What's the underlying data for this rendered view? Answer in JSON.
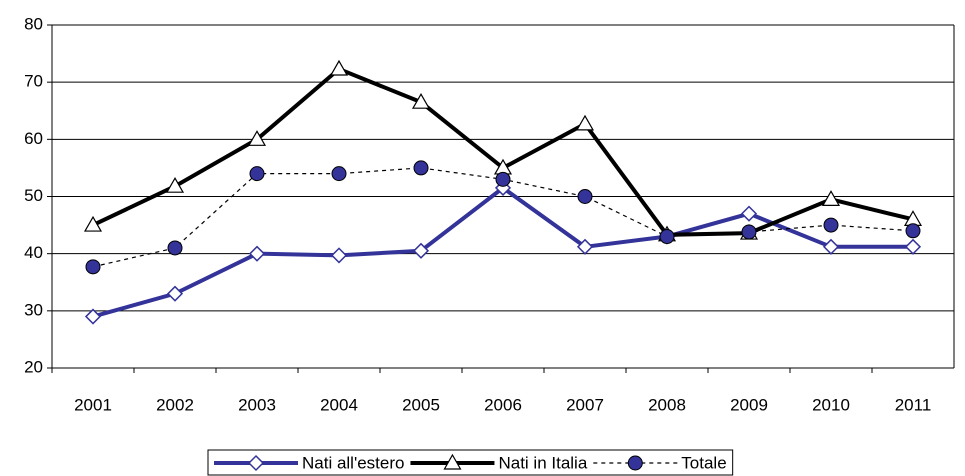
{
  "chart_data": {
    "type": "line",
    "categories": [
      "2001",
      "2002",
      "2003",
      "2004",
      "2005",
      "2006",
      "2007",
      "2008",
      "2009",
      "2010",
      "2011"
    ],
    "series": [
      {
        "name": "Nati all'estero",
        "color": "#333399",
        "marker": "diamond",
        "dashed": false,
        "values": [
          29,
          33,
          40,
          39.7,
          40.5,
          51.5,
          41.2,
          43,
          47,
          41.2,
          41.2
        ]
      },
      {
        "name": "Nati in Italia",
        "color": "#000000",
        "marker": "triangle",
        "dashed": false,
        "values": [
          45,
          51.8,
          60,
          72.3,
          66.5,
          55,
          62.7,
          43.3,
          43.6,
          49.5,
          46
        ]
      },
      {
        "name": "Totale",
        "color": "#333399",
        "marker": "circle",
        "dashed": true,
        "values": [
          37.7,
          41,
          54,
          54,
          55,
          53,
          50,
          43,
          43.8,
          45,
          44
        ]
      }
    ],
    "ylim": [
      20,
      80
    ],
    "yticks": [
      20,
      30,
      40,
      50,
      60,
      70,
      80
    ],
    "grid": true,
    "legend": "bottom"
  }
}
